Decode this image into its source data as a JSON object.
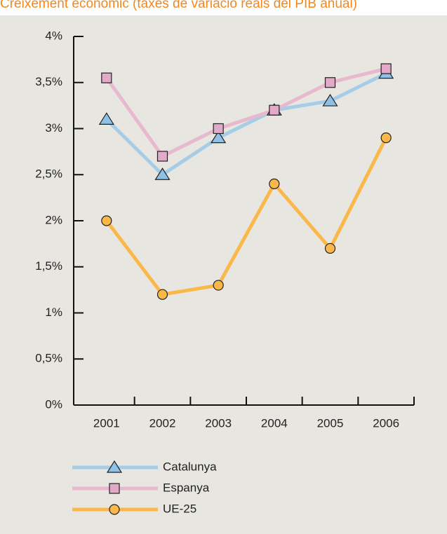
{
  "chart_data": {
    "type": "line",
    "title": "Creixement econòmic (taxes de variació reals del PIB anual)",
    "categories": [
      "2001",
      "2002",
      "2003",
      "2004",
      "2005",
      "2006"
    ],
    "series": [
      {
        "name": "Catalunya",
        "color": "#a6cde8",
        "marker": "triangle",
        "marker_color": "#8fc1e6",
        "values": [
          3.1,
          2.5,
          2.9,
          3.2,
          3.3,
          3.6
        ]
      },
      {
        "name": "Espanya",
        "color": "#e8b8cf",
        "marker": "square",
        "marker_color": "#e3a9c9",
        "values": [
          3.55,
          2.7,
          3.0,
          3.2,
          3.5,
          3.65
        ]
      },
      {
        "name": "UE-25",
        "color": "#fbb84a",
        "marker": "circle",
        "marker_color": "#fbb84a",
        "values": [
          2.0,
          1.2,
          1.3,
          2.4,
          1.7,
          2.9
        ]
      }
    ],
    "ylim": [
      0,
      4
    ],
    "yticks": [
      {
        "value": 0,
        "label": "0%"
      },
      {
        "value": 0.5,
        "label": "0,5%"
      },
      {
        "value": 1,
        "label": "1%"
      },
      {
        "value": 1.5,
        "label": "1,5%"
      },
      {
        "value": 2,
        "label": "2%"
      },
      {
        "value": 2.5,
        "label": "2,5%"
      },
      {
        "value": 3,
        "label": "3%"
      },
      {
        "value": 3.5,
        "label": "3,5%"
      },
      {
        "value": 4,
        "label": "4%"
      }
    ],
    "legend": "bottom"
  }
}
